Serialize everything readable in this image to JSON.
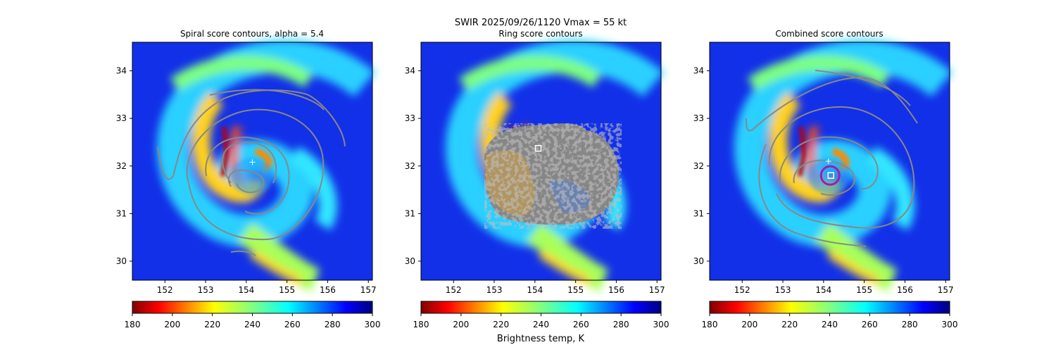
{
  "figure": {
    "suptitle_line1": "SWIR  2025/09/26/1120    Vmax = 55 kt",
    "colorbar_label": "Brightness temp, K"
  },
  "chart_data": [
    {
      "type": "heatmap",
      "title": "Spiral score contours, alpha =  5.4",
      "xlim": [
        151.2,
        157.1
      ],
      "ylim": [
        29.6,
        34.6
      ],
      "xticks": [
        152,
        153,
        154,
        155,
        156,
        157
      ],
      "yticks": [
        30,
        31,
        32,
        33,
        34
      ],
      "overlay": "spiral-contours",
      "markers": [
        {
          "type": "cross",
          "x": 154.15,
          "y": 32.08
        }
      ]
    },
    {
      "type": "heatmap",
      "title": "Ring score contours",
      "xlim": [
        151.2,
        157.1
      ],
      "ylim": [
        29.6,
        34.6
      ],
      "xticks": [
        152,
        153,
        154,
        155,
        156,
        157
      ],
      "yticks": [
        30,
        31,
        32,
        33,
        34
      ],
      "overlay": "ring-score-blob",
      "markers": [
        {
          "type": "square",
          "x": 154.08,
          "y": 32.37
        }
      ]
    },
    {
      "type": "heatmap",
      "title": "Combined score contours",
      "xlim": [
        151.2,
        157.1
      ],
      "ylim": [
        29.6,
        34.6
      ],
      "xticks": [
        152,
        153,
        154,
        155,
        156,
        157
      ],
      "yticks": [
        30,
        31,
        32,
        33,
        34
      ],
      "overlay": "combined-contours",
      "markers": [
        {
          "type": "cross",
          "x": 154.12,
          "y": 32.1
        },
        {
          "type": "square",
          "x": 154.18,
          "y": 31.8
        },
        {
          "type": "ring",
          "x": 154.18,
          "y": 31.8
        }
      ]
    }
  ],
  "colorbar": {
    "colormap": "jet_r",
    "vmin": 180,
    "vmax": 300,
    "ticks": [
      180,
      200,
      220,
      240,
      260,
      280,
      300
    ]
  },
  "colors": {
    "contour": "#888888",
    "ring": "#a020a0",
    "marker": "#ffffff"
  }
}
